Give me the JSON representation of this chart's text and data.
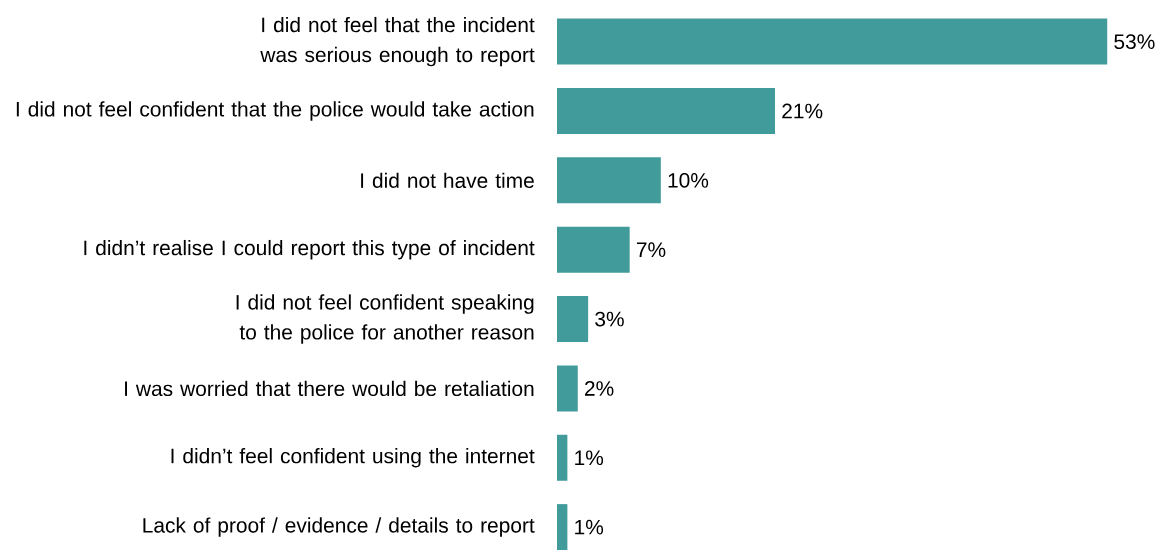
{
  "chart_data": {
    "type": "bar",
    "orientation": "horizontal",
    "color": "#429b9b",
    "categories": [
      "I did not feel that the incident was serious enough to report",
      "I did not feel confident that the police would take action",
      "I did not have time",
      "I didn’t realise I could report this type of incident",
      "I did not feel confident speaking to the police for another reason",
      "I was worried that there would be retaliation",
      "I didn’t feel confident using the internet",
      "Lack of proof / evidence / details to report"
    ],
    "values": [
      53,
      21,
      10,
      7,
      3,
      2,
      1,
      1
    ],
    "value_labels": [
      "53%",
      "21%",
      "10%",
      "7%",
      "3%",
      "2%",
      "1%",
      "1%"
    ]
  }
}
